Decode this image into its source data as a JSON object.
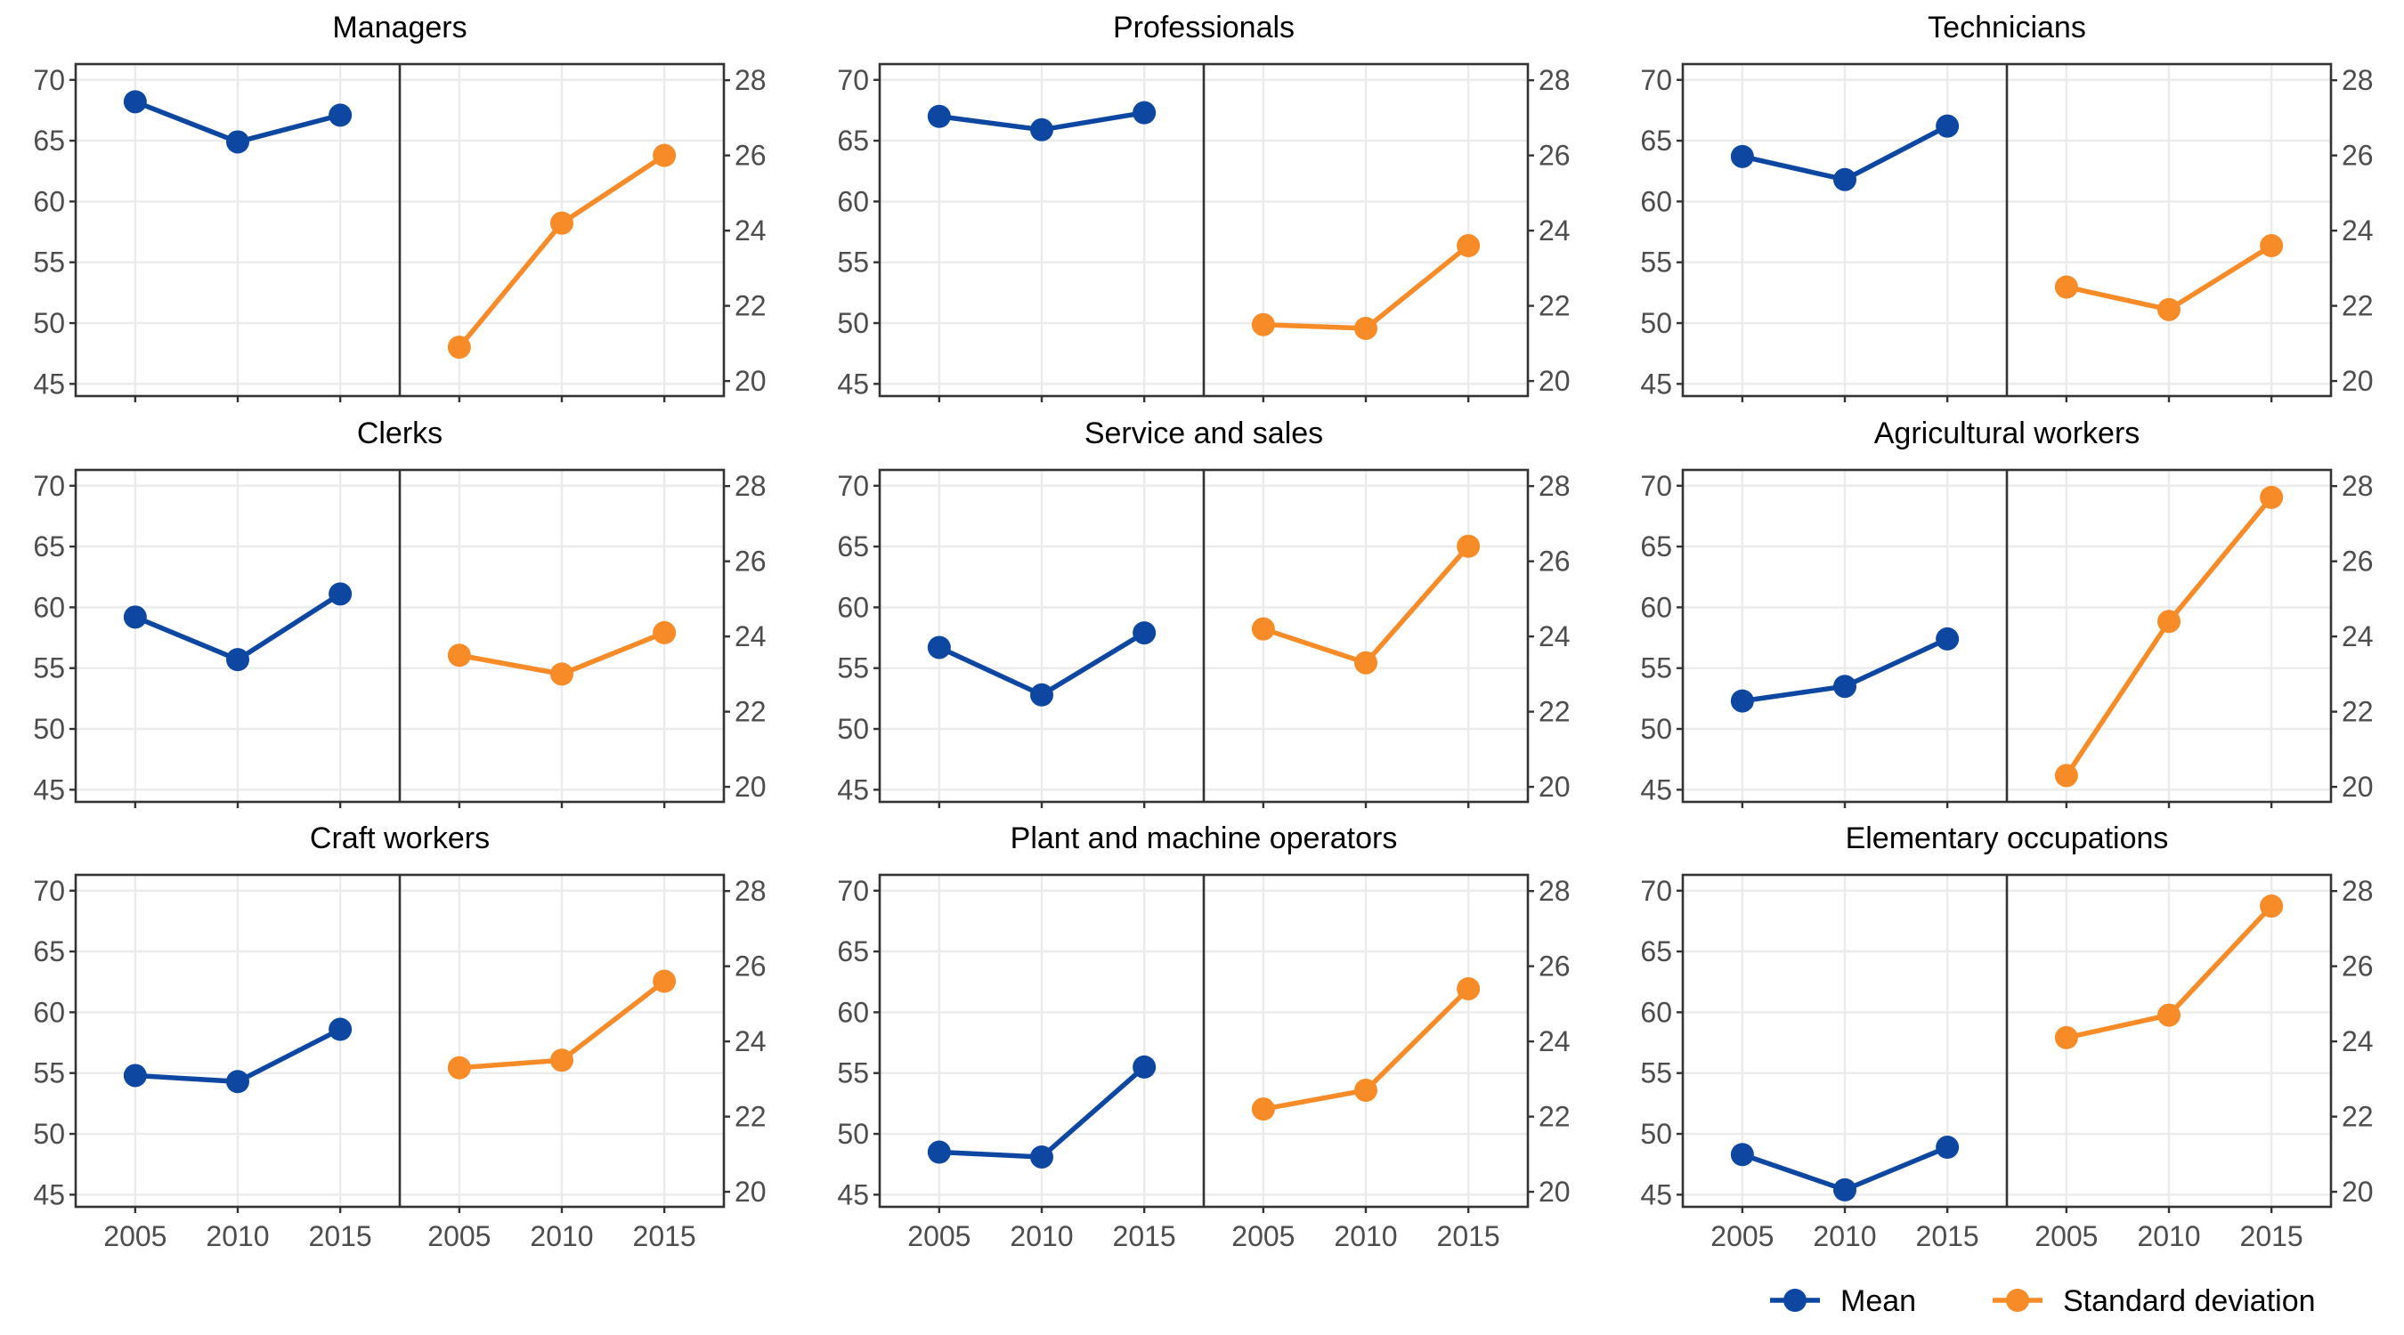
{
  "chart_data": {
    "type": "line",
    "x_ticks": [
      "2005",
      "2010",
      "2015"
    ],
    "left_axis": {
      "ticks": [
        "70",
        "65",
        "60",
        "55",
        "50",
        "45"
      ],
      "range": [
        44,
        71.3
      ]
    },
    "right_axis": {
      "ticks": [
        "28",
        "26",
        "24",
        "22",
        "20"
      ],
      "range": [
        19.6,
        28.43
      ]
    },
    "colors": {
      "mean": "#0d47a1",
      "sd": "#f68b28"
    },
    "legend": {
      "position": "bottom-right",
      "mean_label": "Mean",
      "sd_label": "Standard deviation"
    },
    "panels": [
      {
        "title": "Managers",
        "x": [
          2005,
          2010,
          2015
        ],
        "mean": [
          68.2,
          64.9,
          67.1
        ],
        "sd": [
          20.9,
          24.2,
          26.0
        ]
      },
      {
        "title": "Professionals",
        "x": [
          2005,
          2010,
          2015
        ],
        "mean": [
          67.0,
          65.9,
          67.3
        ],
        "sd": [
          21.5,
          21.4,
          23.6
        ]
      },
      {
        "title": "Technicians",
        "x": [
          2005,
          2010,
          2015
        ],
        "mean": [
          63.7,
          61.8,
          66.2
        ],
        "sd": [
          22.5,
          21.9,
          23.6
        ]
      },
      {
        "title": "Clerks",
        "x": [
          2005,
          2010,
          2015
        ],
        "mean": [
          59.2,
          55.7,
          61.1
        ],
        "sd": [
          23.5,
          23.0,
          24.1
        ]
      },
      {
        "title": "Service and sales",
        "x": [
          2005,
          2010,
          2015
        ],
        "mean": [
          56.7,
          52.8,
          57.9
        ],
        "sd": [
          24.2,
          23.3,
          26.4
        ]
      },
      {
        "title": "Agricultural workers",
        "x": [
          2005,
          2010,
          2015
        ],
        "mean": [
          52.3,
          53.5,
          57.4
        ],
        "sd": [
          20.3,
          24.4,
          27.7
        ]
      },
      {
        "title": "Craft workers",
        "x": [
          2005,
          2010,
          2015
        ],
        "mean": [
          54.8,
          54.3,
          58.6
        ],
        "sd": [
          23.3,
          23.5,
          25.6
        ]
      },
      {
        "title": "Plant and machine operators",
        "x": [
          2005,
          2010,
          2015
        ],
        "mean": [
          48.5,
          48.1,
          55.5
        ],
        "sd": [
          22.2,
          22.7,
          25.4
        ]
      },
      {
        "title": "Elementary occupations",
        "x": [
          2005,
          2010,
          2015
        ],
        "mean": [
          48.3,
          45.4,
          48.9
        ],
        "sd": [
          24.1,
          24.7,
          27.6
        ]
      }
    ]
  }
}
